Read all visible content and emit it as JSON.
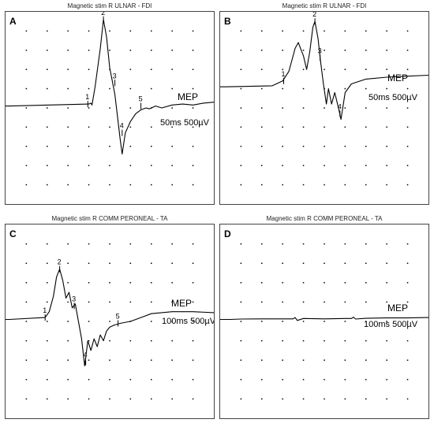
{
  "figure": {
    "panels": [
      {
        "letter": "A",
        "title": "Magnetic stim R ULNAR - FDI",
        "mep_label": "MEP",
        "scale_label": "50ms 500µV",
        "markers": [
          "1",
          "2",
          "3",
          "4",
          "5"
        ]
      },
      {
        "letter": "B",
        "title": "Magnetic stim R ULNAR - FDI",
        "mep_label": "MEP",
        "scale_label": "50ms 500µV",
        "markers": [
          "1",
          "2",
          "3",
          "4"
        ]
      },
      {
        "letter": "C",
        "title": "Magnetic stim R COMM PERONEAL - TA",
        "mep_label": "MEP",
        "scale_label": "100ms 500µV",
        "markers": [
          "1",
          "2",
          "3",
          "4",
          "5"
        ]
      },
      {
        "letter": "D",
        "title": "Magnetic stim R COMM PERONEAL - TA",
        "mep_label": "MEP",
        "scale_label": "100ms 500µV",
        "markers": []
      }
    ]
  },
  "chart_data": [
    {
      "type": "line",
      "title": "Magnetic stim R ULNAR - FDI",
      "panel": "A",
      "grid": true,
      "grid_divisions": {
        "x": 10,
        "y": 10
      },
      "scale": {
        "time_per_div_ms": 50,
        "amplitude_per_div_uV": 500
      },
      "series": [
        {
          "x": [
            0,
            0.2,
            4.0,
            4.1,
            4.15,
            4.3,
            4.55,
            4.7,
            4.85,
            5.0,
            5.25,
            5.5,
            5.6,
            5.75,
            6.0,
            6.25,
            6.5,
            6.75,
            6.9,
            7.2,
            7.5,
            8.0,
            8.5,
            9.0,
            9.5,
            10.0
          ],
          "y": [
            0,
            0,
            0.1,
            0.15,
            0.05,
            1.0,
            3.0,
            4.5,
            3.6,
            2.0,
            0.6,
            -1.7,
            -2.5,
            -1.4,
            -0.8,
            -0.4,
            -0.2,
            -0.1,
            -0.15,
            0,
            -0.1,
            0.05,
            0.1,
            0.05,
            0.15,
            0.2
          ]
        }
      ],
      "markers": [
        {
          "label": "1",
          "x": 3.95,
          "y": 0.1
        },
        {
          "label": "2",
          "x": 4.7,
          "y": 4.5
        },
        {
          "label": "3",
          "x": 5.25,
          "y": 1.2
        },
        {
          "label": "4",
          "x": 5.6,
          "y": -1.4
        },
        {
          "label": "5",
          "x": 6.5,
          "y": 0
        }
      ]
    },
    {
      "type": "line",
      "title": "Magnetic stim R ULNAR - FDI",
      "panel": "B",
      "grid": true,
      "grid_divisions": {
        "x": 10,
        "y": 10
      },
      "scale": {
        "time_per_div_ms": 50,
        "amplitude_per_div_uV": 500
      },
      "series": [
        {
          "x": [
            0,
            0.3,
            2.5,
            3.0,
            3.3,
            3.6,
            3.75,
            4.0,
            4.15,
            4.3,
            4.45,
            4.55,
            4.7,
            4.8,
            4.95,
            5.1,
            5.2,
            5.35,
            5.5,
            5.7,
            5.8,
            6.0,
            6.3,
            7.0,
            8.0,
            9.0,
            10.0
          ],
          "y": [
            0,
            0,
            0.05,
            0.3,
            0.8,
            2.0,
            2.3,
            1.6,
            0.9,
            1.8,
            3.1,
            3.4,
            2.5,
            1.5,
            0.2,
            -0.9,
            -0.1,
            -0.9,
            -0.3,
            -1.2,
            -1.7,
            -0.3,
            0.15,
            0.4,
            0.5,
            0.55,
            0.6
          ]
        }
      ],
      "markers": [
        {
          "label": "1",
          "x": 3.05,
          "y": 0.3
        },
        {
          "label": "2",
          "x": 4.55,
          "y": 3.4
        },
        {
          "label": "3",
          "x": 4.8,
          "y": 1.5
        },
        {
          "label": "4",
          "x": 5.75,
          "y": -1.4
        }
      ]
    },
    {
      "type": "line",
      "title": "Magnetic stim R COMM PERONEAL - TA",
      "panel": "C",
      "grid": true,
      "grid_divisions": {
        "x": 10,
        "y": 10
      },
      "scale": {
        "time_per_div_ms": 100,
        "amplitude_per_div_uV": 500
      },
      "series": [
        {
          "x": [
            0,
            0.2,
            1.9,
            2.1,
            2.3,
            2.45,
            2.6,
            2.75,
            2.9,
            3.05,
            3.2,
            3.35,
            3.5,
            3.65,
            3.8,
            3.95,
            4.1,
            4.25,
            4.4,
            4.55,
            4.7,
            4.85,
            5.0,
            5.2,
            5.5,
            6.0,
            6.5,
            7.0,
            7.5,
            8.0,
            9.0,
            10.0
          ],
          "y": [
            0,
            0,
            0.1,
            0.4,
            1.2,
            2.2,
            2.6,
            2.0,
            1.1,
            1.4,
            0.6,
            0.8,
            -0.1,
            -1.0,
            -2.4,
            -1.1,
            -1.6,
            -1.0,
            -1.4,
            -0.8,
            -1.1,
            -0.6,
            -0.4,
            -0.3,
            -0.2,
            -0.1,
            0.1,
            0.3,
            0.35,
            0.4,
            0.4,
            0.35
          ]
        }
      ],
      "markers": [
        {
          "label": "1",
          "x": 1.9,
          "y": 0.1
        },
        {
          "label": "2",
          "x": 2.6,
          "y": 2.6
        },
        {
          "label": "3",
          "x": 3.3,
          "y": 0.7
        },
        {
          "label": "4",
          "x": 3.85,
          "y": -2.2
        },
        {
          "label": "5",
          "x": 5.4,
          "y": -0.2
        }
      ]
    },
    {
      "type": "line",
      "title": "Magnetic stim R COMM PERONEAL - TA",
      "panel": "D",
      "grid": true,
      "grid_divisions": {
        "x": 10,
        "y": 10
      },
      "scale": {
        "time_per_div_ms": 100,
        "amplitude_per_div_uV": 500
      },
      "series": [
        {
          "x": [
            0,
            0.5,
            1.0,
            2.0,
            3.0,
            3.5,
            3.6,
            3.7,
            4.0,
            5.0,
            6.0,
            6.3,
            6.4,
            6.5,
            7.0,
            8.0,
            9.0,
            10.0
          ],
          "y": [
            0,
            0,
            0.02,
            0.03,
            0.03,
            0.03,
            0.1,
            -0.05,
            0.05,
            0.03,
            0.05,
            0.05,
            0.12,
            0.02,
            0.06,
            0.08,
            0.08,
            0.1
          ]
        }
      ],
      "markers": []
    }
  ]
}
